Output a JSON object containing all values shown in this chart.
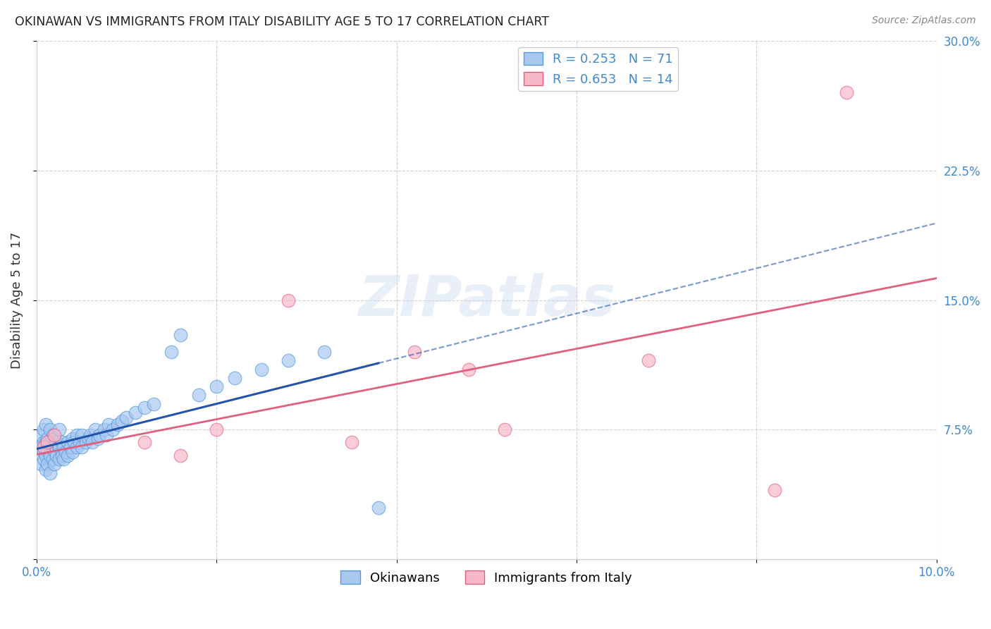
{
  "title": "OKINAWAN VS IMMIGRANTS FROM ITALY DISABILITY AGE 5 TO 17 CORRELATION CHART",
  "source": "Source: ZipAtlas.com",
  "ylabel": "Disability Age 5 to 17",
  "xlim": [
    0.0,
    0.1
  ],
  "ylim": [
    0.0,
    0.3
  ],
  "xticks": [
    0.0,
    0.02,
    0.04,
    0.06,
    0.08,
    0.1
  ],
  "yticks": [
    0.0,
    0.075,
    0.15,
    0.225,
    0.3
  ],
  "xtick_labels": [
    "0.0%",
    "",
    "",
    "",
    "",
    "10.0%"
  ],
  "ytick_labels": [
    "",
    "7.5%",
    "15.0%",
    "22.5%",
    "30.0%"
  ],
  "background_color": "#ffffff",
  "grid_color": "#cccccc",
  "watermark": "ZIPatlas",
  "okinawan": {
    "R": 0.253,
    "N": 71,
    "color": "#a8c8f0",
    "edge_color": "#5599dd",
    "line_color": "#2255aa",
    "label": "Okinawans",
    "x": [
      0.0005,
      0.0005,
      0.0005,
      0.0008,
      0.0008,
      0.0008,
      0.0008,
      0.001,
      0.001,
      0.001,
      0.001,
      0.0012,
      0.0012,
      0.0012,
      0.0015,
      0.0015,
      0.0015,
      0.0015,
      0.0018,
      0.0018,
      0.0018,
      0.002,
      0.002,
      0.002,
      0.0022,
      0.0022,
      0.0025,
      0.0025,
      0.0025,
      0.0028,
      0.0028,
      0.003,
      0.003,
      0.0032,
      0.0035,
      0.0035,
      0.0038,
      0.004,
      0.004,
      0.0042,
      0.0045,
      0.0045,
      0.0048,
      0.005,
      0.005,
      0.0055,
      0.0058,
      0.006,
      0.0062,
      0.0065,
      0.0068,
      0.007,
      0.0075,
      0.0078,
      0.008,
      0.0085,
      0.009,
      0.0095,
      0.01,
      0.011,
      0.012,
      0.013,
      0.015,
      0.016,
      0.018,
      0.02,
      0.022,
      0.025,
      0.028,
      0.032,
      0.038
    ],
    "y": [
      0.055,
      0.065,
      0.072,
      0.058,
      0.062,
      0.068,
      0.075,
      0.052,
      0.06,
      0.068,
      0.078,
      0.055,
      0.063,
      0.07,
      0.05,
      0.06,
      0.068,
      0.075,
      0.058,
      0.065,
      0.072,
      0.055,
      0.063,
      0.07,
      0.06,
      0.068,
      0.058,
      0.065,
      0.075,
      0.06,
      0.068,
      0.058,
      0.065,
      0.062,
      0.06,
      0.068,
      0.065,
      0.062,
      0.07,
      0.068,
      0.065,
      0.072,
      0.068,
      0.065,
      0.072,
      0.068,
      0.07,
      0.072,
      0.068,
      0.075,
      0.07,
      0.072,
      0.075,
      0.072,
      0.078,
      0.075,
      0.078,
      0.08,
      0.082,
      0.085,
      0.088,
      0.09,
      0.12,
      0.13,
      0.095,
      0.1,
      0.105,
      0.11,
      0.115,
      0.12,
      0.03
    ]
  },
  "italy": {
    "R": 0.653,
    "N": 14,
    "color": "#f8b8c8",
    "edge_color": "#e06080",
    "line_color": "#e06080",
    "label": "Immigrants from Italy",
    "x": [
      0.0008,
      0.0012,
      0.002,
      0.012,
      0.016,
      0.02,
      0.028,
      0.035,
      0.042,
      0.048,
      0.052,
      0.068,
      0.082,
      0.09
    ],
    "y": [
      0.065,
      0.068,
      0.072,
      0.068,
      0.06,
      0.075,
      0.15,
      0.068,
      0.12,
      0.11,
      0.075,
      0.115,
      0.04,
      0.27
    ]
  }
}
